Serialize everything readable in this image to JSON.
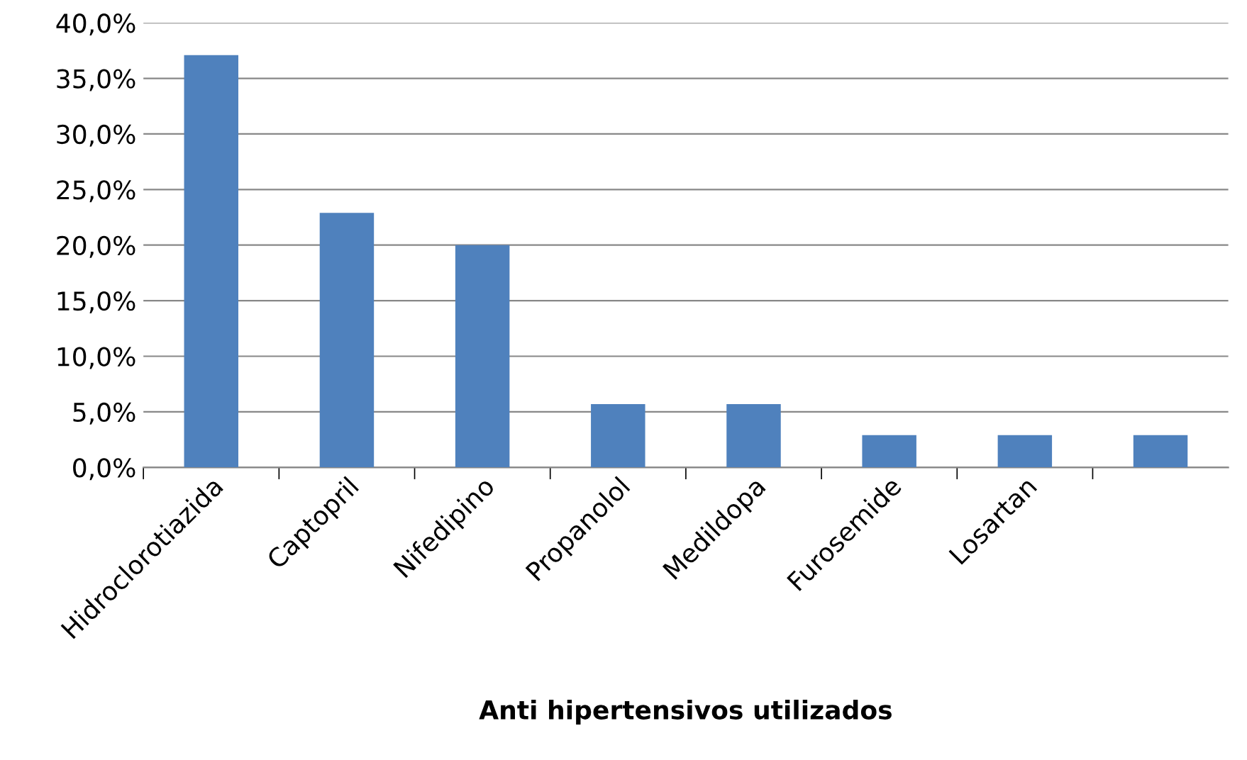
{
  "chart_data": {
    "type": "bar",
    "xlabel": "Anti hipertensivos utilizados",
    "categories": [
      "Hidroclorotiazida",
      "Captopril",
      "Nifedipino",
      "Propanolol",
      "Medildopa",
      "Furosemide",
      "Losartan",
      null
    ],
    "values": [
      37.1,
      22.9,
      20.0,
      5.7,
      5.7,
      2.9,
      2.9,
      2.9
    ],
    "color": "#4f81bd",
    "ylim": [
      0,
      40
    ],
    "yticks": [
      {
        "value": 0,
        "label": "0,0%"
      },
      {
        "value": 5,
        "label": "5,0%"
      },
      {
        "value": 10,
        "label": "10,0%"
      },
      {
        "value": 15,
        "label": "15,0%"
      },
      {
        "value": 20,
        "label": "20,0%"
      },
      {
        "value": 25,
        "label": "25,0%"
      },
      {
        "value": 30,
        "label": "30,0%"
      },
      {
        "value": 35,
        "label": "35,0%"
      },
      {
        "value": 40,
        "label": "40,0%"
      }
    ],
    "grid": "y"
  }
}
